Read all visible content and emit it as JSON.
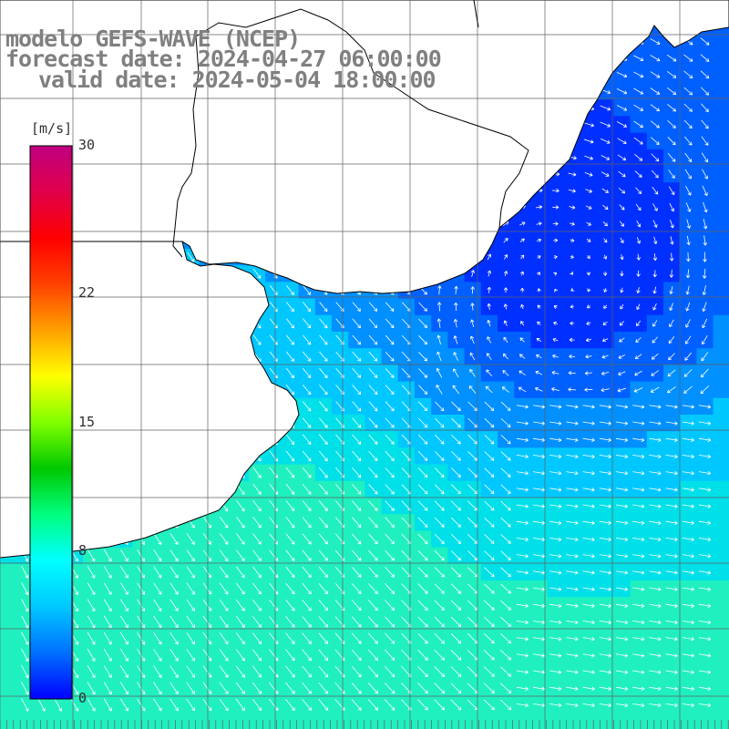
{
  "title": {
    "line1": "modelo GEFS-WAVE (NCEP)",
    "line2": "forecast date: 2024-04-27 06:00:00",
    "line3": "valid date: 2024-05-04 18:00:00"
  },
  "colorbar": {
    "unit": "[m/s]",
    "ticks": [
      "30",
      "22",
      "15",
      "8",
      "0"
    ],
    "tick_values": [
      30,
      22,
      15,
      8,
      0
    ],
    "min": 0,
    "max": 30,
    "colors": [
      "#0000ff",
      "#0070ff",
      "#00c8ff",
      "#00ffff",
      "#00ff80",
      "#00c800",
      "#80ff00",
      "#ffff00",
      "#ffa000",
      "#ff4000",
      "#ff0000",
      "#e0004a",
      "#c00080"
    ]
  },
  "map": {
    "variable": "wind speed and direction",
    "ocean_colors": {
      "calm": "#0030ff",
      "light": "#0060ff",
      "moderate": "#0090ff",
      "fresh": "#00c8ff",
      "strong": "#00e0e8",
      "stronger": "#20f0c0"
    },
    "land_color": "#ffffff",
    "arrow_color": "#ffffff",
    "grid_color": "#606060"
  }
}
